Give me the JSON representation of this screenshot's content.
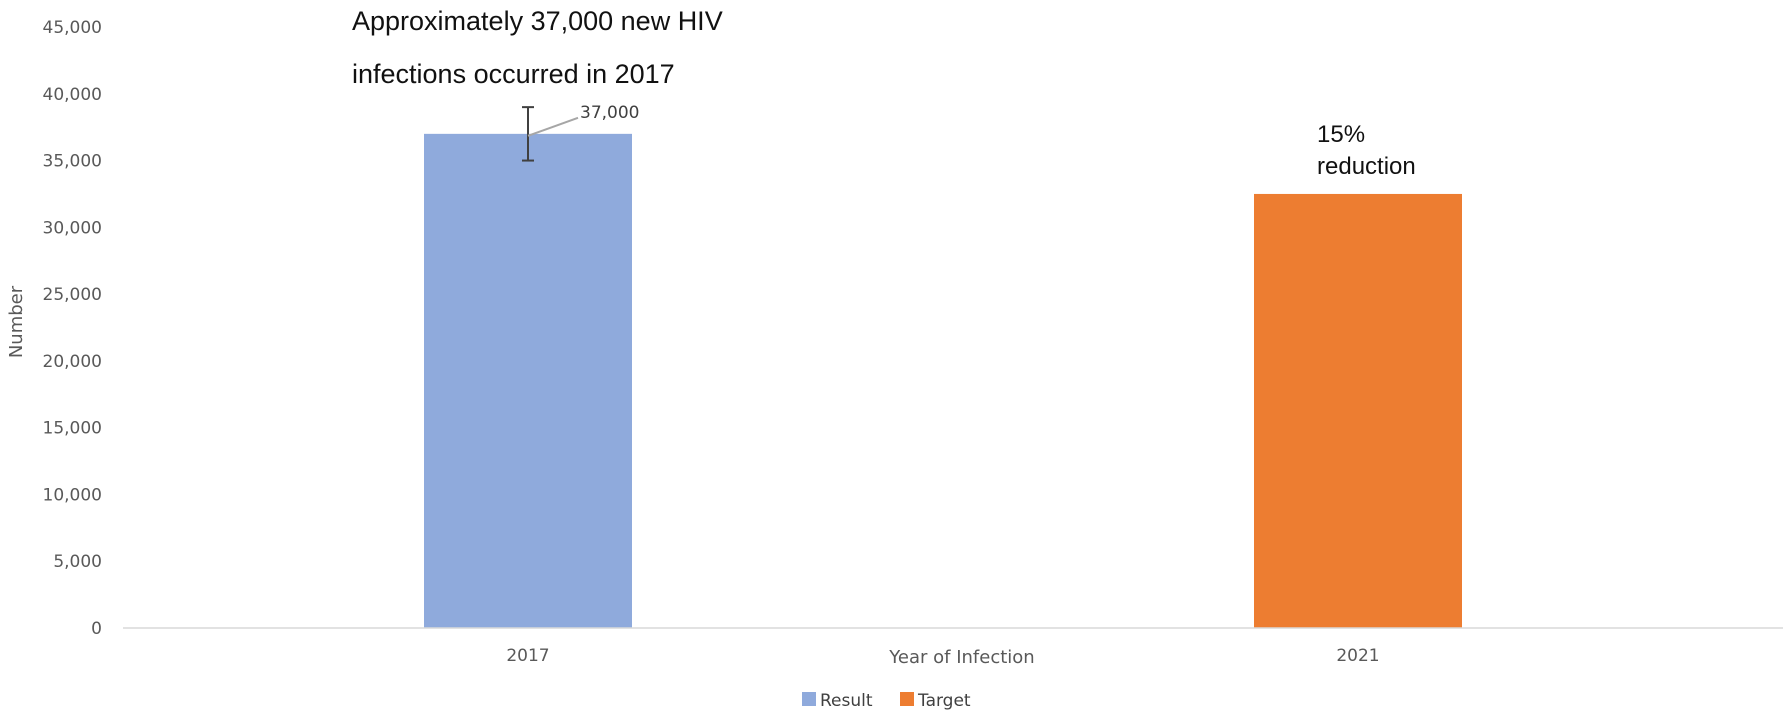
{
  "chart_data": {
    "type": "bar",
    "categories": [
      "2017",
      "2021"
    ],
    "series": [
      {
        "name": "Result",
        "values": [
          37000,
          null
        ],
        "color": "#8FAADC"
      },
      {
        "name": "Target",
        "values": [
          null,
          32500
        ],
        "color": "#ED7D31"
      }
    ],
    "error_bar": {
      "category": "2017",
      "low": 35000,
      "high": 39000
    },
    "data_label": {
      "category": "2017",
      "text": "37,000"
    },
    "ylim": [
      0,
      45000
    ],
    "yticks": [
      0,
      5000,
      10000,
      15000,
      20000,
      25000,
      30000,
      35000,
      40000,
      45000
    ],
    "ytick_labels": [
      "0",
      "5,000",
      "10,000",
      "15,000",
      "20,000",
      "25,000",
      "30,000",
      "35,000",
      "40,000",
      "45,000"
    ],
    "xlabel": "Year of Infection",
    "ylabel": "Number",
    "grid": false,
    "legend": {
      "position": "bottom",
      "entries": [
        "Result",
        "Target"
      ]
    },
    "annotations": {
      "top_line1": "Approximately 37,000 new HIV",
      "top_line2": "infections occurred in 2017",
      "target_line1": "15%",
      "target_line2": "reduction"
    }
  }
}
